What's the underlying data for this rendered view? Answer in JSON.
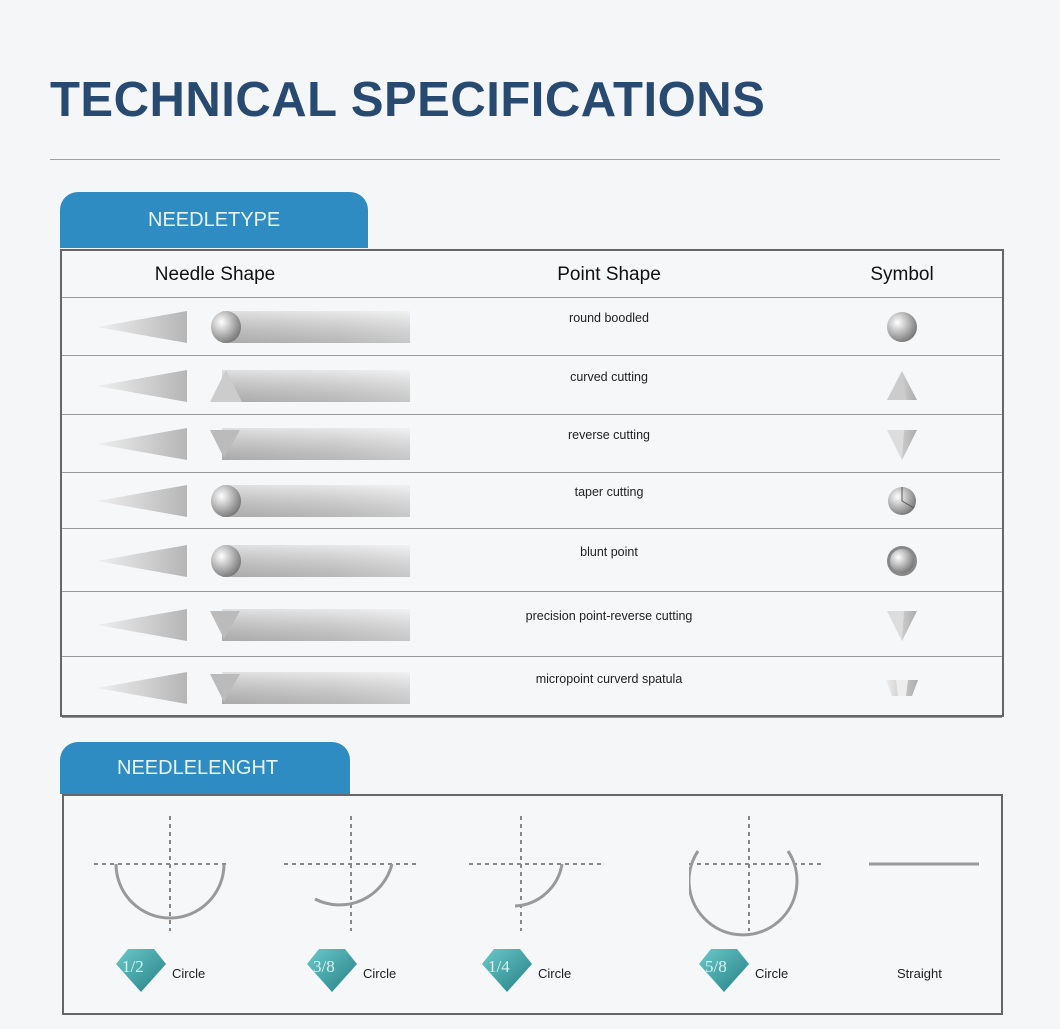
{
  "title": "TECHNICAL SPECIFICATIONS",
  "needle_type": {
    "tab": "NEEDLETYPE",
    "headers": [
      "Needle Shape",
      "Point Shape",
      "Symbol"
    ],
    "rows": [
      {
        "point_shape": "round boodled",
        "symbol": "round-sphere-icon"
      },
      {
        "point_shape": "curved cutting",
        "symbol": "triangle-up-icon"
      },
      {
        "point_shape": "reverse cutting",
        "symbol": "triangle-down-icon"
      },
      {
        "point_shape": "taper cutting",
        "symbol": "taper-sphere-icon"
      },
      {
        "point_shape": "blunt point",
        "symbol": "ring-icon"
      },
      {
        "point_shape": "precision point-reverse cutting",
        "symbol": "triangle-down-icon"
      },
      {
        "point_shape": "micropoint curverd spatula",
        "symbol": "trapezoid-icon"
      }
    ]
  },
  "needle_length": {
    "tab": "NEEDLELENGHT",
    "items": [
      {
        "fraction": "1/2",
        "label": "Circle"
      },
      {
        "fraction": "3/8",
        "label": "Circle"
      },
      {
        "fraction": "1/4",
        "label": "Circle"
      },
      {
        "fraction": "5/8",
        "label": "Circle"
      },
      {
        "fraction": "",
        "label": "Straight"
      }
    ]
  },
  "colors": {
    "title": "#284a70",
    "tab": "#2f8cc2",
    "badge": "#3aa6a8"
  }
}
